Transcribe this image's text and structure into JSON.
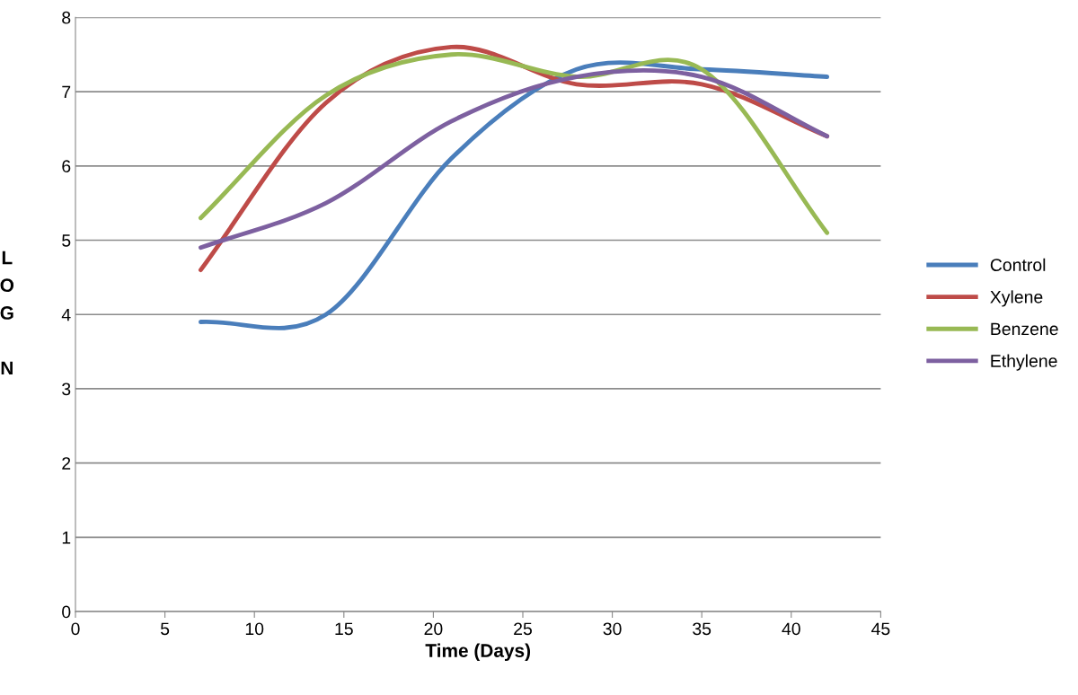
{
  "chart_data": {
    "type": "line",
    "xlabel": "Time (Days)",
    "ylabel": "LOG N",
    "x": [
      7,
      14,
      21,
      28,
      35,
      42
    ],
    "series": [
      {
        "name": "Control",
        "color": "#4a7ebb",
        "values": [
          3.9,
          4.0,
          6.1,
          7.3,
          7.3,
          7.2
        ]
      },
      {
        "name": "Xylene",
        "color": "#be4b48",
        "values": [
          4.6,
          6.85,
          7.6,
          7.1,
          7.1,
          6.4
        ]
      },
      {
        "name": "Benzene",
        "color": "#98b954",
        "values": [
          5.3,
          6.95,
          7.5,
          7.2,
          7.3,
          5.1
        ]
      },
      {
        "name": "Ethylene",
        "color": "#7d60a0",
        "values": [
          4.9,
          5.5,
          6.6,
          7.2,
          7.2,
          6.4
        ]
      }
    ],
    "xlim": [
      0,
      45
    ],
    "xticks": [
      0,
      5,
      10,
      15,
      20,
      25,
      30,
      35,
      40,
      45
    ],
    "ylim": [
      0,
      8
    ],
    "yticks": [
      0,
      1,
      2,
      3,
      4,
      5,
      6,
      7,
      8
    ],
    "grid": "y",
    "legend": "right",
    "marker": "none",
    "line_style": "solid"
  }
}
